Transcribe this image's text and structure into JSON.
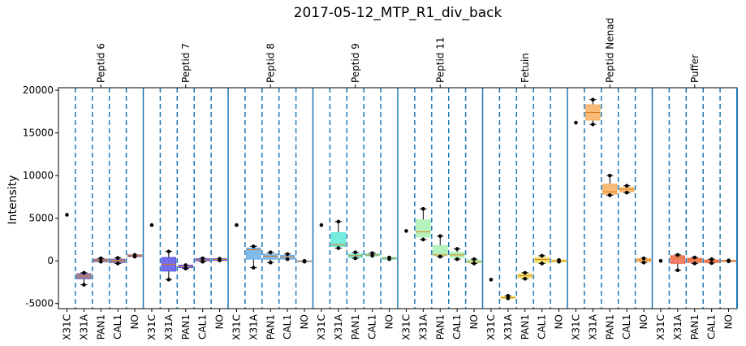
{
  "chart_data": {
    "type": "box",
    "title": "2017-05-12_MTP_R1_div_back",
    "ylabel": "Intensity",
    "xlabel": "",
    "ylim": [
      -5600,
      20300
    ],
    "yticks": [
      -5000,
      0,
      5000,
      10000,
      15000,
      20000
    ],
    "grid": false,
    "conditions": [
      "X31C",
      "X31A",
      "PAN1",
      "CAL1",
      "NO"
    ],
    "groups": [
      {
        "name": "Peptid 6",
        "color": "#7b68a8",
        "boxes": [
          {
            "condition": "X31C",
            "q1": 5400,
            "median": 5400,
            "q3": 5400,
            "whislo": 5400,
            "whishi": 5400,
            "points": [
              5400
            ]
          },
          {
            "condition": "X31A",
            "q1": -2100,
            "median": -1800,
            "q3": -1500,
            "whislo": -2800,
            "whishi": -1400,
            "points": [
              -2800,
              -1400
            ]
          },
          {
            "condition": "PAN1",
            "q1": -100,
            "median": 100,
            "q3": 200,
            "whislo": -100,
            "whishi": 300,
            "points": [
              -100,
              300
            ]
          },
          {
            "condition": "CAL1",
            "q1": -200,
            "median": 50,
            "q3": 200,
            "whislo": -300,
            "whishi": 350,
            "points": [
              -300,
              350
            ]
          },
          {
            "condition": "NO",
            "q1": 500,
            "median": 600,
            "q3": 700,
            "whislo": 500,
            "whishi": 700,
            "points": [
              500,
              700
            ]
          }
        ]
      },
      {
        "name": "Peptid 7",
        "color": "#5a55e8",
        "boxes": [
          {
            "condition": "X31C",
            "q1": 4200,
            "median": 4200,
            "q3": 4200,
            "whislo": 4200,
            "whishi": 4200,
            "points": [
              4200
            ]
          },
          {
            "condition": "X31A",
            "q1": -1200,
            "median": -400,
            "q3": 400,
            "whislo": -2200,
            "whishi": 1100,
            "points": [
              -2200,
              1100
            ]
          },
          {
            "condition": "PAN1",
            "q1": -800,
            "median": -650,
            "q3": -500,
            "whislo": -900,
            "whishi": -500,
            "points": [
              -900,
              -500
            ]
          },
          {
            "condition": "CAL1",
            "q1": 0,
            "median": 100,
            "q3": 250,
            "whislo": -100,
            "whishi": 300,
            "points": [
              -100,
              300
            ]
          },
          {
            "condition": "NO",
            "q1": 50,
            "median": 150,
            "q3": 250,
            "whislo": 50,
            "whishi": 250,
            "points": [
              50,
              250
            ]
          }
        ]
      },
      {
        "name": "Peptid 8",
        "color": "#6aaee8",
        "boxes": [
          {
            "condition": "X31C",
            "q1": 4200,
            "median": 4200,
            "q3": 4200,
            "whislo": 4200,
            "whishi": 4200,
            "points": [
              4200
            ]
          },
          {
            "condition": "X31A",
            "q1": 200,
            "median": 1300,
            "q3": 1500,
            "whislo": -800,
            "whishi": 1700,
            "points": [
              -800,
              1700
            ]
          },
          {
            "condition": "PAN1",
            "q1": 200,
            "median": 550,
            "q3": 800,
            "whislo": -200,
            "whishi": 1000,
            "points": [
              -200,
              1000
            ]
          },
          {
            "condition": "CAL1",
            "q1": 200,
            "median": 450,
            "q3": 650,
            "whislo": 200,
            "whishi": 800,
            "points": [
              200,
              800
            ]
          },
          {
            "condition": "NO",
            "q1": -100,
            "median": -50,
            "q3": 0,
            "whislo": -100,
            "whishi": 0,
            "points": [
              -100,
              0
            ]
          }
        ]
      },
      {
        "name": "Peptid 9",
        "color": "#5ee8d8",
        "boxes": [
          {
            "condition": "X31C",
            "q1": 4200,
            "median": 4200,
            "q3": 4200,
            "whislo": 4200,
            "whishi": 4200,
            "points": [
              4200
            ]
          },
          {
            "condition": "X31A",
            "q1": 1700,
            "median": 1900,
            "q3": 3300,
            "whislo": 1500,
            "whishi": 4600,
            "points": [
              1500,
              4600
            ]
          },
          {
            "condition": "PAN1",
            "q1": 400,
            "median": 600,
            "q3": 800,
            "whislo": 300,
            "whishi": 1000,
            "points": [
              300,
              1000
            ]
          },
          {
            "condition": "CAL1",
            "q1": 600,
            "median": 700,
            "q3": 800,
            "whislo": 600,
            "whishi": 900,
            "points": [
              600,
              900
            ]
          },
          {
            "condition": "NO",
            "q1": 200,
            "median": 300,
            "q3": 400,
            "whislo": 200,
            "whishi": 400,
            "points": [
              200,
              400
            ]
          }
        ]
      },
      {
        "name": "Peptid 11",
        "color": "#a8f0b0",
        "boxes": [
          {
            "condition": "X31C",
            "q1": 3500,
            "median": 3500,
            "q3": 3500,
            "whislo": 3500,
            "whishi": 3500,
            "points": [
              3500
            ]
          },
          {
            "condition": "X31A",
            "q1": 2800,
            "median": 3400,
            "q3": 4800,
            "whislo": 2500,
            "whishi": 6100,
            "points": [
              2500,
              6100
            ]
          },
          {
            "condition": "PAN1",
            "q1": 600,
            "median": 700,
            "q3": 1800,
            "whislo": 500,
            "whishi": 2900,
            "points": [
              500,
              2900
            ]
          },
          {
            "condition": "CAL1",
            "q1": 400,
            "median": 700,
            "q3": 1000,
            "whislo": 200,
            "whishi": 1400,
            "points": [
              200,
              1400
            ]
          },
          {
            "condition": "NO",
            "q1": -200,
            "median": -100,
            "q3": 100,
            "whislo": -300,
            "whishi": 200,
            "points": [
              -300,
              200
            ]
          }
        ]
      },
      {
        "name": "Fetuin",
        "color": "#f0e060",
        "boxes": [
          {
            "condition": "X31C",
            "q1": -2200,
            "median": -2200,
            "q3": -2200,
            "whislo": -2200,
            "whishi": -2200,
            "points": [
              -2200
            ]
          },
          {
            "condition": "X31A",
            "q1": -4400,
            "median": -4300,
            "q3": -4200,
            "whislo": -4400,
            "whishi": -4100,
            "points": [
              -4400,
              -4100
            ]
          },
          {
            "condition": "PAN1",
            "q1": -2000,
            "median": -1750,
            "q3": -1500,
            "whislo": -2100,
            "whishi": -1400,
            "points": [
              -2100,
              -1400
            ]
          },
          {
            "condition": "CAL1",
            "q1": -200,
            "median": 150,
            "q3": 400,
            "whislo": -300,
            "whishi": 600,
            "points": [
              -300,
              600
            ]
          },
          {
            "condition": "NO",
            "q1": -100,
            "median": 0,
            "q3": 100,
            "whislo": -100,
            "whishi": 100,
            "points": [
              -100,
              100
            ]
          }
        ]
      },
      {
        "name": "Peptid Nenad",
        "color": "#f8b060",
        "boxes": [
          {
            "condition": "X31C",
            "q1": 16200,
            "median": 16200,
            "q3": 16200,
            "whislo": 16200,
            "whishi": 16200,
            "points": [
              16200
            ]
          },
          {
            "condition": "X31A",
            "q1": 16500,
            "median": 17400,
            "q3": 18300,
            "whislo": 16000,
            "whishi": 18900,
            "points": [
              16000,
              18900
            ]
          },
          {
            "condition": "PAN1",
            "q1": 7800,
            "median": 8100,
            "q3": 9000,
            "whislo": 7700,
            "whishi": 10000,
            "points": [
              7700,
              10000
            ]
          },
          {
            "condition": "CAL1",
            "q1": 8100,
            "median": 8400,
            "q3": 8600,
            "whislo": 8000,
            "whishi": 8800,
            "points": [
              8000,
              8800
            ]
          },
          {
            "condition": "NO",
            "q1": -100,
            "median": 100,
            "q3": 250,
            "whislo": -200,
            "whishi": 300,
            "points": [
              -200,
              300
            ]
          }
        ]
      },
      {
        "name": "Puffer",
        "color": "#ee6a50",
        "boxes": [
          {
            "condition": "X31C",
            "q1": 0,
            "median": 0,
            "q3": 0,
            "whislo": 0,
            "whishi": 0,
            "points": [
              0
            ]
          },
          {
            "condition": "X31A",
            "q1": -300,
            "median": 300,
            "q3": 600,
            "whislo": -1100,
            "whishi": 700,
            "points": [
              -1100,
              700
            ]
          },
          {
            "condition": "PAN1",
            "q1": -200,
            "median": 100,
            "q3": 300,
            "whislo": -300,
            "whishi": 400,
            "points": [
              -300,
              400
            ]
          },
          {
            "condition": "CAL1",
            "q1": -200,
            "median": 0,
            "q3": 100,
            "whislo": -250,
            "whishi": 200,
            "points": [
              -250,
              200
            ]
          },
          {
            "condition": "NO",
            "q1": -50,
            "median": 0,
            "q3": 50,
            "whislo": -50,
            "whishi": 50,
            "points": [
              -50,
              50
            ]
          }
        ]
      }
    ],
    "group_separator_color": "#1f77b4",
    "condition_separator_color": "#1f77b4"
  }
}
